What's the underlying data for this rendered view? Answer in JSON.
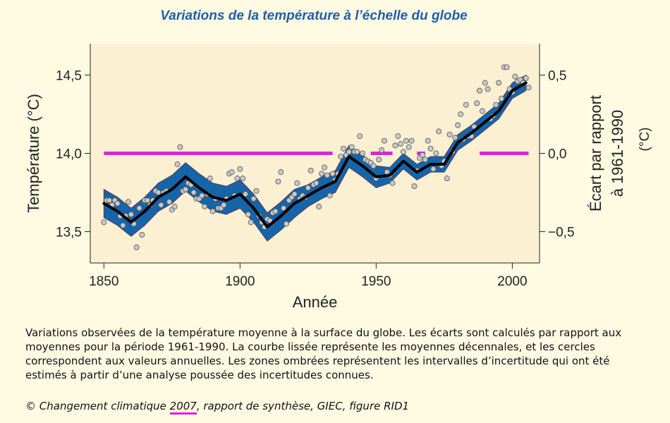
{
  "chart_data": {
    "type": "line",
    "title": "Variations de la température à l’échelle du globe",
    "xlabel": "Année",
    "ylabel": "Température (°C)",
    "y2label": [
      "Écart par rapport",
      "à 1961-1990",
      "(°C)"
    ],
    "xlim": [
      1845,
      2010
    ],
    "xticks": [
      1850,
      1900,
      1950,
      2000
    ],
    "ylim": [
      13.3,
      14.7
    ],
    "yticks": [
      {
        "value": 13.5,
        "label": "13,5"
      },
      {
        "value": 14.0,
        "label": "14,0"
      },
      {
        "value": 14.5,
        "label": "14,5"
      }
    ],
    "y2lim": [
      -0.7,
      0.7
    ],
    "y2ticks": [
      {
        "value": -0.5,
        "label": "−0,5"
      },
      {
        "value": 0.0,
        "label": "0,0"
      },
      {
        "value": 0.5,
        "label": "0,5"
      }
    ],
    "plot_background": "#fcf0d2",
    "smoothed": {
      "color": "#000000",
      "band_color": "#1565a8",
      "x": [
        1850,
        1855,
        1860,
        1865,
        1870,
        1875,
        1880,
        1885,
        1890,
        1895,
        1900,
        1905,
        1910,
        1915,
        1920,
        1925,
        1930,
        1935,
        1940,
        1945,
        1950,
        1955,
        1960,
        1965,
        1970,
        1975,
        1980,
        1985,
        1990,
        1995,
        2000,
        2005
      ],
      "values": [
        13.68,
        13.63,
        13.56,
        13.63,
        13.72,
        13.77,
        13.85,
        13.78,
        13.72,
        13.7,
        13.74,
        13.65,
        13.53,
        13.6,
        13.68,
        13.73,
        13.78,
        13.82,
        13.98,
        13.92,
        13.85,
        13.86,
        13.95,
        13.88,
        13.93,
        13.93,
        14.07,
        14.13,
        14.2,
        14.27,
        14.4,
        14.45
      ],
      "lower": [
        13.59,
        13.54,
        13.47,
        13.54,
        13.63,
        13.68,
        13.76,
        13.69,
        13.63,
        13.61,
        13.65,
        13.56,
        13.44,
        13.51,
        13.59,
        13.66,
        13.71,
        13.75,
        13.91,
        13.85,
        13.78,
        13.81,
        13.9,
        13.83,
        13.88,
        13.88,
        14.02,
        14.08,
        14.15,
        14.22,
        14.35,
        14.4
      ],
      "upper": [
        13.77,
        13.72,
        13.65,
        13.72,
        13.81,
        13.86,
        13.94,
        13.87,
        13.81,
        13.79,
        13.83,
        13.74,
        13.62,
        13.69,
        13.77,
        13.8,
        13.85,
        13.89,
        14.05,
        13.99,
        13.92,
        13.91,
        14.0,
        13.93,
        13.98,
        13.98,
        14.12,
        14.18,
        14.25,
        14.32,
        14.45,
        14.5
      ]
    },
    "annual": {
      "color": "#c8c8c8",
      "x": [
        1850,
        1851,
        1852,
        1853,
        1854,
        1855,
        1856,
        1857,
        1858,
        1859,
        1860,
        1861,
        1862,
        1863,
        1864,
        1865,
        1866,
        1867,
        1868,
        1869,
        1870,
        1871,
        1872,
        1873,
        1874,
        1875,
        1876,
        1877,
        1878,
        1879,
        1880,
        1881,
        1882,
        1883,
        1884,
        1885,
        1886,
        1887,
        1888,
        1889,
        1890,
        1891,
        1892,
        1893,
        1894,
        1895,
        1896,
        1897,
        1898,
        1899,
        1900,
        1901,
        1902,
        1903,
        1904,
        1905,
        1906,
        1907,
        1908,
        1909,
        1910,
        1911,
        1912,
        1913,
        1914,
        1915,
        1916,
        1917,
        1918,
        1919,
        1920,
        1921,
        1922,
        1923,
        1924,
        1925,
        1926,
        1927,
        1928,
        1929,
        1930,
        1931,
        1932,
        1933,
        1934,
        1935,
        1936,
        1937,
        1938,
        1939,
        1940,
        1941,
        1942,
        1943,
        1944,
        1945,
        1946,
        1947,
        1948,
        1949,
        1950,
        1951,
        1952,
        1953,
        1954,
        1955,
        1956,
        1957,
        1958,
        1959,
        1960,
        1961,
        1962,
        1963,
        1964,
        1965,
        1966,
        1967,
        1968,
        1969,
        1970,
        1971,
        1972,
        1973,
        1974,
        1975,
        1976,
        1977,
        1978,
        1979,
        1980,
        1981,
        1982,
        1983,
        1984,
        1985,
        1986,
        1987,
        1988,
        1989,
        1990,
        1991,
        1992,
        1993,
        1994,
        1995,
        1996,
        1997,
        1998,
        1999,
        2000,
        2001,
        2002,
        2003,
        2004,
        2005,
        2006
      ],
      "values": [
        13.56,
        13.7,
        13.7,
        13.67,
        13.7,
        13.68,
        13.6,
        13.54,
        13.6,
        13.69,
        13.61,
        13.55,
        13.4,
        13.65,
        13.48,
        13.7,
        13.7,
        13.67,
        13.7,
        13.76,
        13.75,
        13.67,
        13.75,
        13.76,
        13.69,
        13.64,
        13.66,
        13.93,
        14.04,
        13.76,
        13.77,
        13.81,
        13.8,
        13.75,
        13.71,
        13.71,
        13.73,
        13.66,
        13.74,
        13.84,
        13.63,
        13.71,
        13.65,
        13.65,
        13.67,
        13.71,
        13.87,
        13.88,
        13.73,
        13.84,
        13.9,
        13.84,
        13.74,
        13.61,
        13.56,
        13.71,
        13.76,
        13.6,
        13.56,
        13.53,
        13.58,
        13.57,
        13.62,
        13.63,
        13.82,
        13.88,
        13.65,
        13.55,
        13.7,
        13.72,
        13.74,
        13.81,
        13.71,
        13.73,
        13.72,
        13.78,
        13.89,
        13.8,
        13.81,
        13.66,
        13.87,
        13.91,
        13.86,
        13.73,
        13.87,
        13.83,
        13.87,
        13.98,
        14.03,
        13.99,
        14.01,
        14.04,
        14.01,
        14.01,
        14.11,
        14.0,
        13.96,
        13.95,
        13.94,
        13.92,
        13.84,
        13.96,
        14.02,
        14.08,
        13.88,
        13.86,
        13.81,
        14.05,
        14.11,
        14.06,
        14.01,
        14.08,
        14.04,
        14.08,
        13.79,
        13.89,
        13.97,
        13.99,
        13.96,
        14.08,
        14.03,
        13.9,
        14.0,
        14.14,
        13.92,
        13.95,
        13.84,
        14.12,
        14.01,
        14.1,
        14.18,
        14.25,
        14.09,
        14.31,
        14.11,
        14.11,
        14.17,
        14.32,
        14.4,
        14.27,
        14.45,
        14.41,
        14.22,
        14.24,
        14.31,
        14.45,
        14.35,
        14.55,
        14.55,
        14.41,
        14.39,
        14.49,
        14.46,
        14.47,
        14.45,
        14.48,
        14.42
      ]
    },
    "reference_line": {
      "value": 14.0,
      "color": "#e020e0",
      "segments": [
        [
          1850,
          1934
        ],
        [
          1948,
          1956
        ],
        [
          1965,
          1968
        ],
        [
          1988,
          2006
        ]
      ]
    }
  },
  "caption": "Variations observées de la température moyenne à la surface du globe. Les écarts sont calculés par rapport aux moyennes pour la période 1961-1990. La courbe lissée représente les moyennes décennales, et les cercles correspondent aux valeurs annuelles. Les zones ombrées représentent les intervalles d’incertitude qui ont été estimés à partir d’une analyse poussée des incertitudes connues.",
  "source": {
    "before": "© Changement climatique ",
    "year": "2007",
    "after": ", rapport de synthèse, GIEC, figure RID1"
  }
}
